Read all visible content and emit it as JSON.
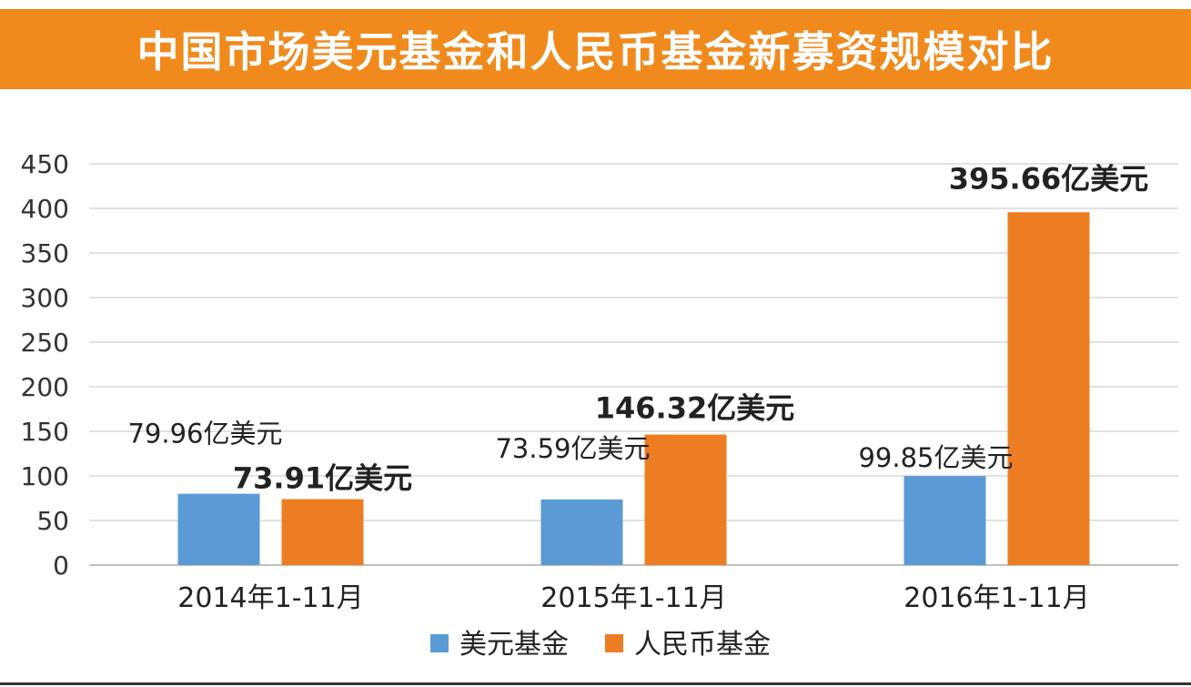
{
  "title": "中国市场美元基金和人民币基金新募资规模对比",
  "colors": {
    "title_bg": "#f08a1c",
    "usd_series": "#5b9bd5",
    "rmb_series": "#ed7d22",
    "grid": "#d9d9d9"
  },
  "chart_data": {
    "type": "bar",
    "title": "中国市场美元基金和人民币基金新募资规模对比",
    "categories": [
      "2014年1-11月",
      "2015年1-11月",
      "2016年1-11月"
    ],
    "series": [
      {
        "name": "美元基金",
        "values": [
          79.96,
          73.59,
          99.85
        ],
        "labels": [
          "79.96亿美元",
          "73.59亿美元",
          "99.85亿美元"
        ],
        "label_bold": false
      },
      {
        "name": "人民币基金",
        "values": [
          73.91,
          146.32,
          395.66
        ],
        "labels": [
          "73.91亿美元",
          "146.32亿美元",
          "395.66亿美元"
        ],
        "label_bold": true
      }
    ],
    "yticks": [
      "0",
      "50",
      "100",
      "150",
      "200",
      "250",
      "300",
      "350",
      "400",
      "450"
    ],
    "ylim": [
      0,
      450
    ],
    "grid": true,
    "legend": "bottom-center"
  }
}
